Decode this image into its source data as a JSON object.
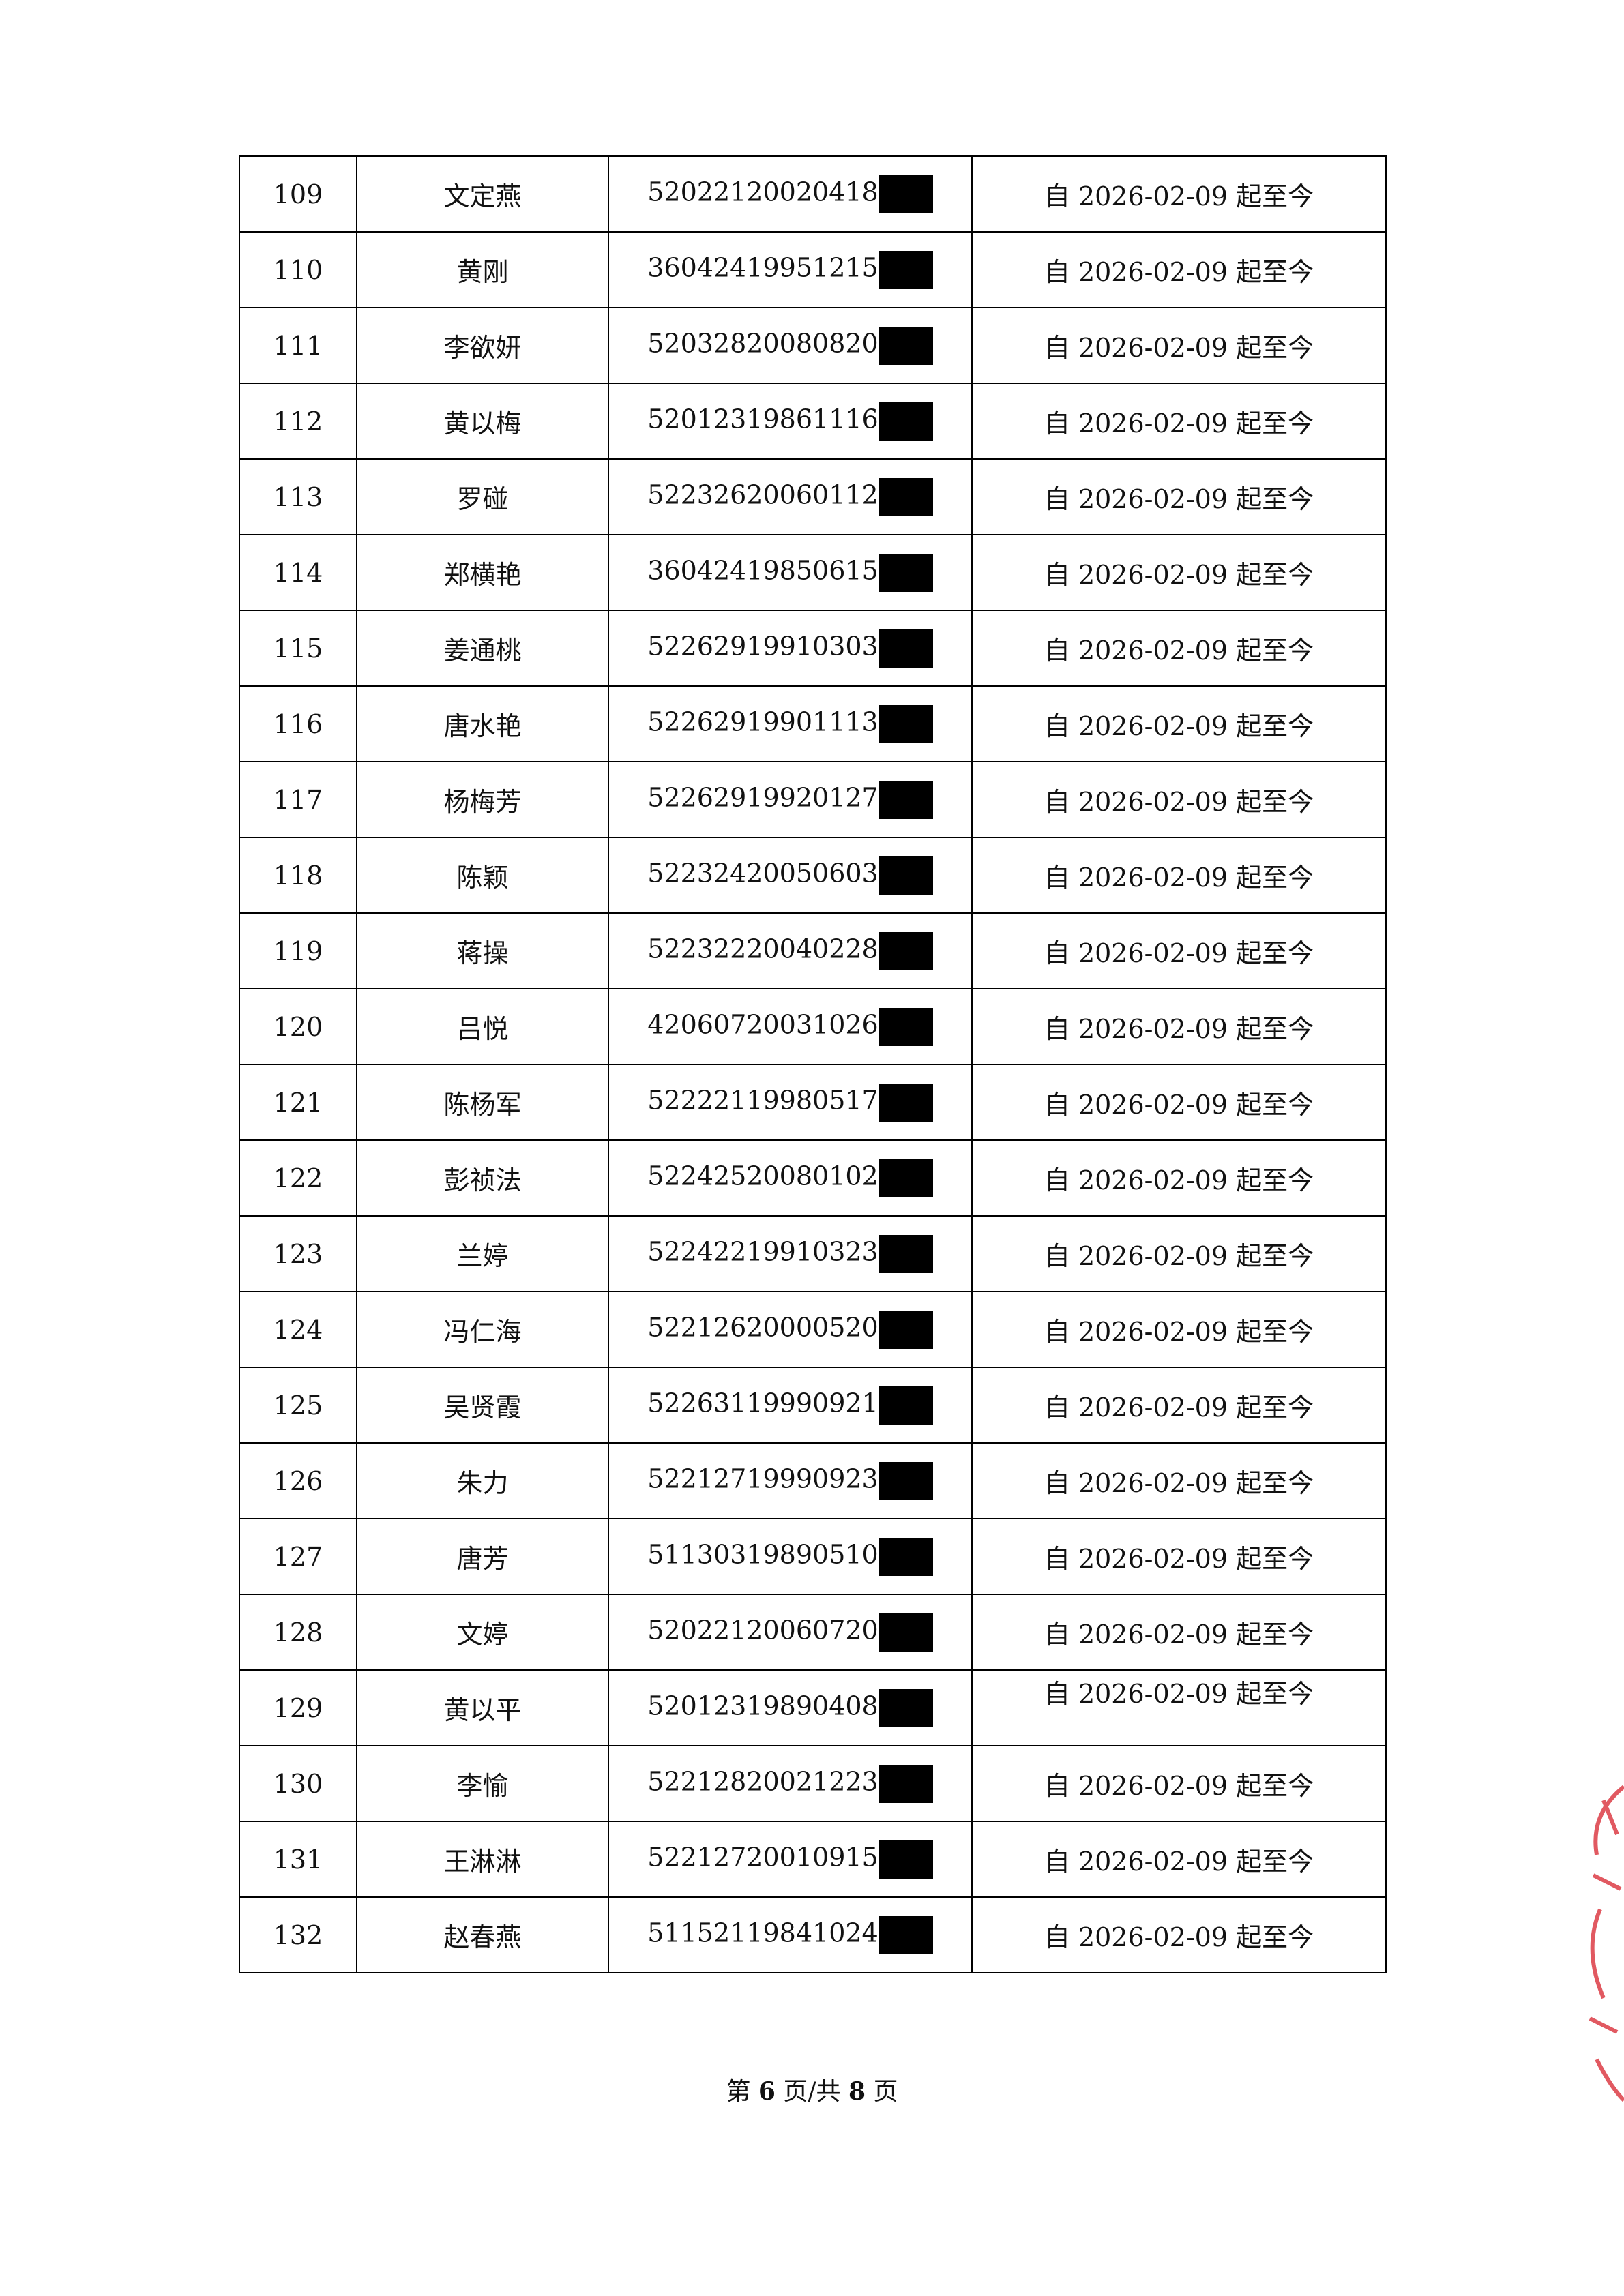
{
  "table": {
    "rows": [
      [
        "109",
        "文定燕",
        "52022120020418",
        "自 2026-02-09 起至今"
      ],
      [
        "110",
        "黄刚",
        "36042419951215",
        "自 2026-02-09 起至今"
      ],
      [
        "111",
        "李欲妍",
        "52032820080820",
        "自 2026-02-09 起至今"
      ],
      [
        "112",
        "黄以梅",
        "52012319861116",
        "自 2026-02-09 起至今"
      ],
      [
        "113",
        "罗碰",
        "52232620060112",
        "自 2026-02-09 起至今"
      ],
      [
        "114",
        "郑横艳",
        "36042419850615",
        "自 2026-02-09 起至今"
      ],
      [
        "115",
        "姜通桃",
        "52262919910303",
        "自 2026-02-09 起至今"
      ],
      [
        "116",
        "唐水艳",
        "52262919901113",
        "自 2026-02-09 起至今"
      ],
      [
        "117",
        "杨梅芳",
        "52262919920127",
        "自 2026-02-09 起至今"
      ],
      [
        "118",
        "陈颖",
        "52232420050603",
        "自 2026-02-09 起至今"
      ],
      [
        "119",
        "蒋操",
        "52232220040228",
        "自 2026-02-09 起至今"
      ],
      [
        "120",
        "吕悦",
        "42060720031026",
        "自 2026-02-09 起至今"
      ],
      [
        "121",
        "陈杨军",
        "52222119980517",
        "自 2026-02-09 起至今"
      ],
      [
        "122",
        "彭祯法",
        "52242520080102",
        "自 2026-02-09 起至今"
      ],
      [
        "123",
        "兰婷",
        "52242219910323",
        "自 2026-02-09 起至今"
      ],
      [
        "124",
        "冯仁海",
        "52212620000520",
        "自 2026-02-09 起至今"
      ],
      [
        "125",
        "吴贤霞",
        "52263119990921",
        "自 2026-02-09 起至今"
      ],
      [
        "126",
        "朱力",
        "52212719990923",
        "自 2026-02-09 起至今"
      ],
      [
        "127",
        "唐芳",
        "51130319890510",
        "自 2026-02-09 起至今"
      ],
      [
        "128",
        "文婷",
        "52022120060720",
        "自 2026-02-09 起至今"
      ],
      [
        "129",
        "黄以平",
        "52012319890408",
        "自 2026-02-09 起至今"
      ],
      [
        "130",
        "李愉",
        "52212820021223",
        "自 2026-02-09 起至今"
      ],
      [
        "131",
        "王淋淋",
        "52212720010915",
        "自 2026-02-09 起至今"
      ],
      [
        "132",
        "赵春燕",
        "51152119841024",
        "自 2026-02-09 起至今"
      ]
    ]
  },
  "footer": {
    "parts": [
      "第",
      "6",
      "页/共",
      "8",
      "页"
    ]
  }
}
